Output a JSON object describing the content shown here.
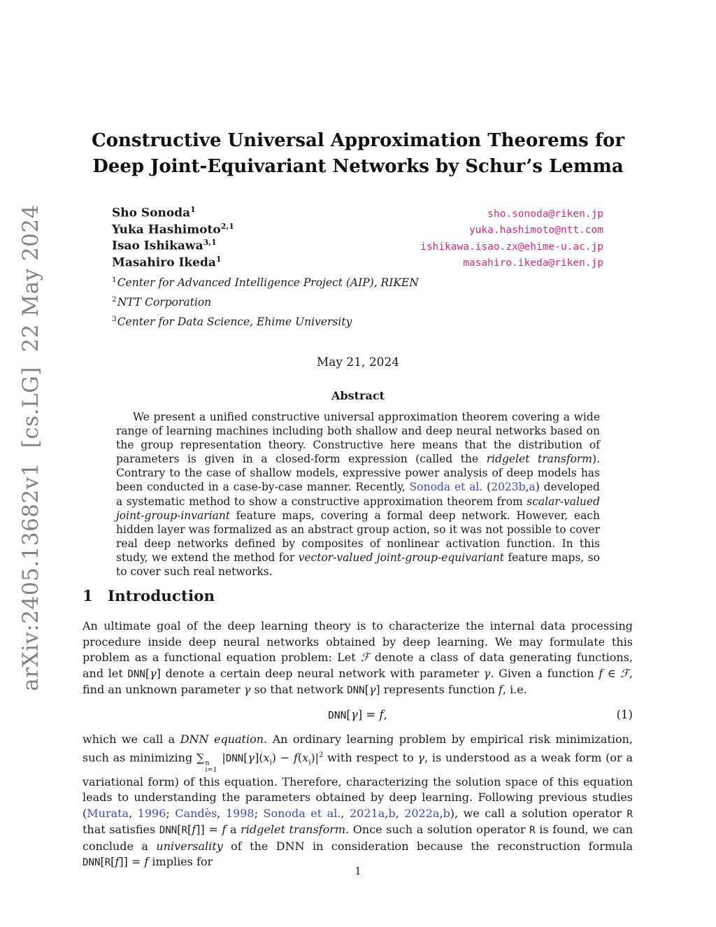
{
  "colors": {
    "email_link": "#cf2d7c",
    "citation_link": "#3a4bc3",
    "watermark_gray": "#828282",
    "body_text": "#1b1b1b"
  },
  "watermark": "arXiv:2405.13682v1  [cs.LG]  22 May 2024",
  "title": {
    "line1": "Constructive Universal Approximation Theorems for",
    "line2": "Deep Joint-Equivariant Networks by Schur’s Lemma"
  },
  "authors": [
    {
      "name": "Sho Sonoda",
      "sup": "1",
      "email": "sho.sonoda@riken.jp"
    },
    {
      "name": "Yuka Hashimoto",
      "sup": "2,1",
      "email": "yuka.hashimoto@ntt.com"
    },
    {
      "name": "Isao Ishikawa",
      "sup": "3,1",
      "email": "ishikawa.isao.zx@ehime-u.ac.jp"
    },
    {
      "name": "Masahiro Ikeda",
      "sup": "1",
      "email": "masahiro.ikeda@riken.jp"
    }
  ],
  "affiliations": [
    {
      "sup": "1",
      "text": "Center for Advanced Intelligence Project (AIP), RIKEN"
    },
    {
      "sup": "2",
      "text": "NTT Corporation"
    },
    {
      "sup": "3",
      "text": "Center for Data Science, Ehime University"
    }
  ],
  "date": "May 21, 2024",
  "abstract": {
    "heading": "Abstract",
    "runs": [
      [
        "p",
        "We present a unified constructive universal approximation theorem covering a wide range of learning machines including both shallow and deep neural networks based on the group representation theory. Constructive here means that the distribution of parameters is given in a closed-form expression (called the "
      ],
      [
        "i",
        "ridgelet transform"
      ],
      [
        "p",
        "). Contrary to the case of shallow models, expressive power analysis of deep models has been conducted in a case-by-case manner. Recently, "
      ],
      [
        "b",
        "Sonoda et al."
      ],
      [
        "p",
        " ("
      ],
      [
        "b",
        "2023b"
      ],
      [
        "p",
        ","
      ],
      [
        "b",
        "a"
      ],
      [
        "p",
        ") developed a systematic method to show a constructive approximation theorem from "
      ],
      [
        "i",
        "scalar-valued joint-group-invariant"
      ],
      [
        "p",
        " feature maps, covering a formal deep network. However, each hidden layer was formalized as an abstract group action, so it was not possible to cover real deep networks defined by composites of nonlinear activation function. In this study, we extend the method for "
      ],
      [
        "i",
        "vector-valued joint-group-equivariant"
      ],
      [
        "p",
        " feature maps, so to cover such real networks."
      ]
    ]
  },
  "section1": {
    "number": "1",
    "heading": "Introduction",
    "para1_runs": [
      [
        "p",
        "An ultimate goal of the deep learning theory is to characterize the internal data processing procedure inside deep neural networks obtained by deep learning. We may formulate this problem as a functional equation problem: Let "
      ],
      [
        "g",
        "ℱ"
      ],
      [
        "p",
        " denote a class of data generating functions, and let "
      ],
      [
        "m",
        "DNN"
      ],
      [
        "p",
        "["
      ],
      [
        "g",
        "γ"
      ],
      [
        "p",
        "] denote a certain deep neural network with parameter "
      ],
      [
        "g",
        "γ"
      ],
      [
        "p",
        ". Given a function "
      ],
      [
        "g",
        "f"
      ],
      [
        "p",
        " ∈ "
      ],
      [
        "g",
        "ℱ"
      ],
      [
        "p",
        ", find an unknown parameter "
      ],
      [
        "g",
        "γ"
      ],
      [
        "p",
        " so that network "
      ],
      [
        "m",
        "DNN"
      ],
      [
        "p",
        "["
      ],
      [
        "g",
        "γ"
      ],
      [
        "p",
        "] represents function "
      ],
      [
        "g",
        "f"
      ],
      [
        "p",
        ", i.e."
      ]
    ],
    "equation_runs": [
      [
        "m",
        "DNN"
      ],
      [
        "p",
        "["
      ],
      [
        "g",
        "γ"
      ],
      [
        "p",
        "] = "
      ],
      [
        "g",
        "f"
      ],
      [
        "p",
        ","
      ]
    ],
    "equation_tag": "(1)",
    "para2_runs": [
      [
        "p",
        "which we call a "
      ],
      [
        "i",
        "DNN equation"
      ],
      [
        "p",
        ". An ordinary learning problem by empirical risk minimization, such as minimizing "
      ],
      [
        "p",
        "∑"
      ],
      [
        "ss",
        "n|i=1"
      ],
      [
        "p",
        " |"
      ],
      [
        "m",
        "DNN"
      ],
      [
        "p",
        "["
      ],
      [
        "g",
        "γ"
      ],
      [
        "p",
        "]("
      ],
      [
        "g",
        "x"
      ],
      [
        "sub",
        "i"
      ],
      [
        "p",
        ") − "
      ],
      [
        "g",
        "f"
      ],
      [
        "p",
        "("
      ],
      [
        "g",
        "x"
      ],
      [
        "sub",
        "i"
      ],
      [
        "p",
        ")|"
      ],
      [
        "sup",
        "2"
      ],
      [
        "p",
        " with respect to "
      ],
      [
        "g",
        "γ"
      ],
      [
        "p",
        ", is understood as a weak form (or a variational form) of this equation. Therefore, characterizing the solution space of this equation leads to understanding the parameters obtained by deep learning. Following previous studies ("
      ],
      [
        "b",
        "Murata"
      ],
      [
        "p",
        ", "
      ],
      [
        "b",
        "1996"
      ],
      [
        "p",
        "; "
      ],
      [
        "b",
        "Candès"
      ],
      [
        "p",
        ", "
      ],
      [
        "b",
        "1998"
      ],
      [
        "p",
        "; "
      ],
      [
        "b",
        "Sonoda et al."
      ],
      [
        "p",
        ", "
      ],
      [
        "b",
        "2021a"
      ],
      [
        "p",
        ","
      ],
      [
        "b",
        "b"
      ],
      [
        "p",
        ", "
      ],
      [
        "b",
        "2022a"
      ],
      [
        "p",
        ","
      ],
      [
        "b",
        "b"
      ],
      [
        "p",
        "), we call a solution operator "
      ],
      [
        "m",
        "R"
      ],
      [
        "p",
        " that satisfies "
      ],
      [
        "m",
        "DNN"
      ],
      [
        "p",
        "["
      ],
      [
        "m",
        "R"
      ],
      [
        "p",
        "["
      ],
      [
        "g",
        "f"
      ],
      [
        "p",
        "]] = "
      ],
      [
        "g",
        "f"
      ],
      [
        "p",
        " a "
      ],
      [
        "i",
        "ridgelet transform"
      ],
      [
        "p",
        ". Once such a solution operator "
      ],
      [
        "m",
        "R"
      ],
      [
        "p",
        " is found, we can conclude a "
      ],
      [
        "i",
        "universality"
      ],
      [
        "p",
        " of the DNN in consideration because the reconstruction formula "
      ],
      [
        "m",
        "DNN"
      ],
      [
        "p",
        "["
      ],
      [
        "m",
        "R"
      ],
      [
        "p",
        "["
      ],
      [
        "g",
        "f"
      ],
      [
        "p",
        "]] = "
      ],
      [
        "g",
        "f"
      ],
      [
        "p",
        " implies for"
      ]
    ]
  },
  "page_number": "1"
}
